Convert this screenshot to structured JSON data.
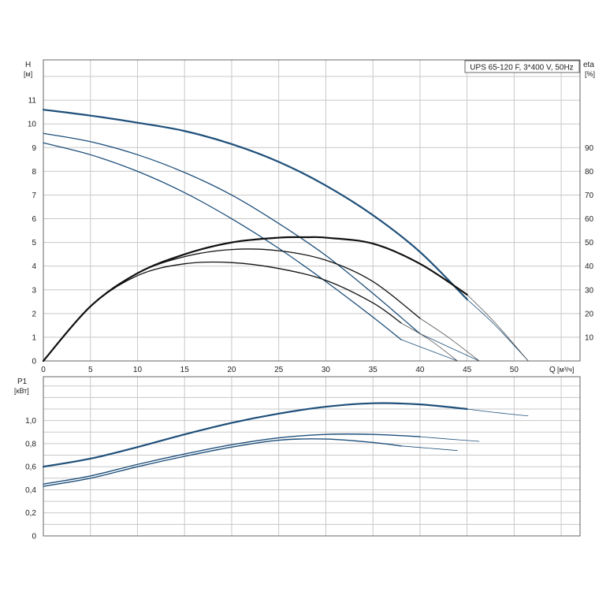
{
  "title": "UPS 65-120 F, 3*400 V, 50Hz",
  "colors": {
    "grid": "#c8c8c8",
    "frame": "#666666",
    "head": "#1e4f7a",
    "eta": "#111111",
    "power": "#1e4f7a",
    "extension": "#1e4f7a"
  },
  "top_axes": {
    "y_left_name": "H",
    "y_left_unit": "[м]",
    "y_right_name": "eta",
    "y_right_unit": "[%]",
    "x_name": "Q",
    "x_unit": "[м³/ч]",
    "x_ticks": [
      "0",
      "5",
      "10",
      "15",
      "20",
      "25",
      "30",
      "35",
      "40",
      "45",
      "50"
    ],
    "y_left_ticks": [
      "0",
      "1",
      "2",
      "3",
      "4",
      "5",
      "6",
      "7",
      "8",
      "9",
      "10",
      "11"
    ],
    "y_right_ticks": [
      "10",
      "20",
      "30",
      "40",
      "50",
      "60",
      "70",
      "80",
      "90"
    ]
  },
  "bottom_axes": {
    "y_name": "P1",
    "y_unit": "[кВт]",
    "y_ticks": [
      "0",
      "0,2",
      "0,4",
      "0,6",
      "0,8",
      "1,0"
    ]
  },
  "chart_data": [
    {
      "type": "line",
      "panel": "head",
      "xlabel": "Q [м³/ч]",
      "ylabel": "H [м]",
      "y2label": "eta [%]",
      "xlim": [
        0,
        57
      ],
      "ylim": [
        0,
        12.7
      ],
      "y2lim": [
        0,
        127
      ],
      "grid": true,
      "series": [
        {
          "kind": "head",
          "x": [
            0,
            5,
            10,
            15,
            20,
            25,
            30,
            35,
            40,
            45
          ],
          "y": [
            10.6,
            10.35,
            10.05,
            9.7,
            9.15,
            8.4,
            7.4,
            6.15,
            4.6,
            2.6
          ],
          "ext_x": [
            45,
            48,
            51.5
          ],
          "ext_y": [
            2.6,
            1.5,
            0
          ]
        },
        {
          "kind": "head",
          "x": [
            0,
            5,
            10,
            15,
            20,
            25,
            30,
            35,
            40
          ],
          "y": [
            9.6,
            9.25,
            8.7,
            7.95,
            7.0,
            5.8,
            4.45,
            2.85,
            1.15
          ],
          "ext_x": [
            40,
            43,
            46.3
          ],
          "ext_y": [
            1.15,
            0.6,
            0
          ]
        },
        {
          "kind": "head",
          "x": [
            0,
            5,
            10,
            15,
            20,
            25,
            30,
            35,
            38
          ],
          "y": [
            9.2,
            8.7,
            8.0,
            7.1,
            6.0,
            4.75,
            3.35,
            1.85,
            0.9
          ],
          "ext_x": [
            38,
            41,
            44
          ],
          "ext_y": [
            0.9,
            0.45,
            0
          ]
        },
        {
          "kind": "eta",
          "x": [
            0,
            5,
            10,
            15,
            20,
            25,
            28,
            30,
            35,
            40,
            45
          ],
          "y": [
            0,
            23,
            37,
            45,
            50,
            52,
            52.2,
            52,
            49.5,
            41,
            28
          ],
          "ext_x": [
            45,
            48,
            51.5
          ],
          "ext_y": [
            28,
            16,
            0
          ]
        },
        {
          "kind": "eta",
          "x": [
            0,
            5,
            10,
            15,
            20,
            25,
            30,
            35,
            40
          ],
          "y": [
            0,
            23,
            37,
            44,
            47,
            46.5,
            42.5,
            33.5,
            18
          ],
          "ext_x": [
            40,
            43,
            46.3
          ],
          "ext_y": [
            18,
            10,
            0
          ]
        },
        {
          "kind": "eta",
          "x": [
            0,
            5,
            10,
            15,
            20,
            25,
            30,
            35,
            38
          ],
          "y": [
            0,
            23,
            36,
            41,
            41.5,
            39,
            34,
            24.5,
            16
          ],
          "ext_x": [
            38,
            41,
            44
          ],
          "ext_y": [
            16,
            9,
            0
          ]
        }
      ]
    },
    {
      "type": "line",
      "panel": "power",
      "xlabel": "Q [м³/ч]",
      "ylabel": "P1 [кВт]",
      "xlim": [
        0,
        57
      ],
      "ylim": [
        0,
        1.38
      ],
      "grid": true,
      "series": [
        {
          "x": [
            0,
            5,
            10,
            15,
            20,
            25,
            30,
            35,
            40,
            45
          ],
          "y": [
            0.6,
            0.67,
            0.77,
            0.88,
            0.98,
            1.06,
            1.12,
            1.15,
            1.14,
            1.1
          ],
          "ext_x": [
            45,
            48,
            51.5
          ],
          "ext_y": [
            1.1,
            1.07,
            1.04
          ]
        },
        {
          "x": [
            0,
            5,
            10,
            15,
            20,
            25,
            30,
            35,
            40
          ],
          "y": [
            0.45,
            0.52,
            0.62,
            0.71,
            0.79,
            0.85,
            0.88,
            0.88,
            0.86
          ],
          "ext_x": [
            40,
            43,
            46.3
          ],
          "ext_y": [
            0.86,
            0.84,
            0.82
          ]
        },
        {
          "x": [
            0,
            5,
            10,
            15,
            20,
            25,
            30,
            35,
            38
          ],
          "y": [
            0.43,
            0.5,
            0.6,
            0.69,
            0.77,
            0.83,
            0.84,
            0.81,
            0.78
          ],
          "ext_x": [
            38,
            41,
            44
          ],
          "ext_y": [
            0.78,
            0.76,
            0.74
          ]
        }
      ]
    }
  ]
}
